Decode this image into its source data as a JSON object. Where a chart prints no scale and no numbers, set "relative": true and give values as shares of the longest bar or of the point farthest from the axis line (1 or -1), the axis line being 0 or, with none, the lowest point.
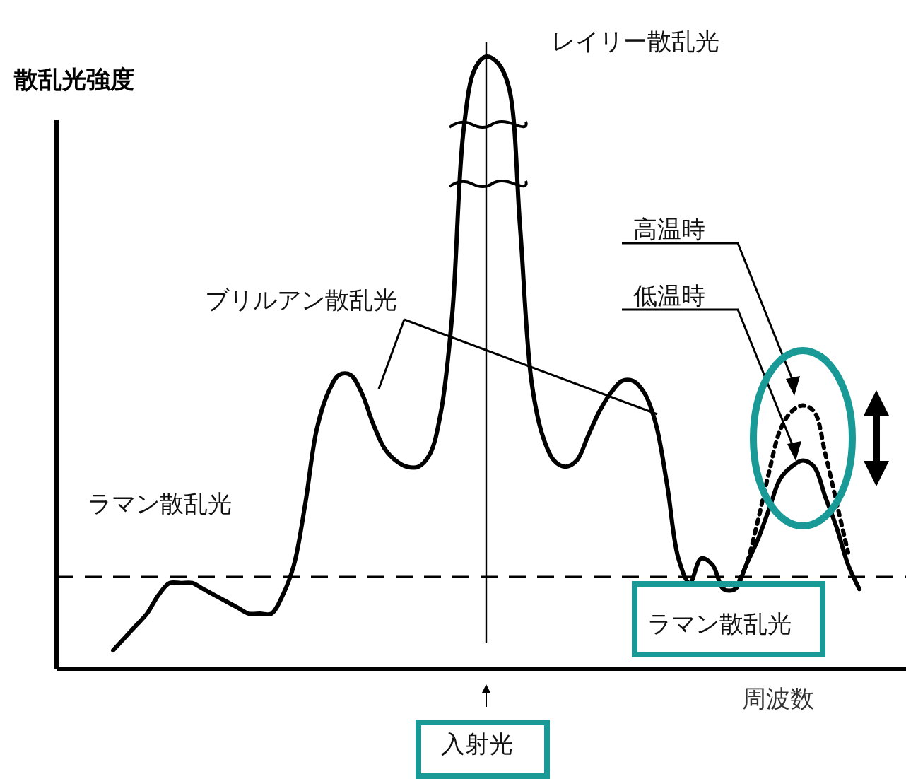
{
  "chart_data": {
    "type": "line",
    "relative": true,
    "ylabel": "散乱光強度",
    "xlabel": "周波数",
    "categories": [
      null,
      null,
      null,
      null,
      null,
      null,
      null,
      null,
      null,
      null,
      null,
      null,
      null,
      null,
      null,
      null,
      null,
      null,
      null,
      null,
      null,
      null,
      null,
      null,
      null,
      null,
      null,
      null,
      null,
      null,
      null,
      null,
      null,
      null,
      null,
      null,
      null,
      null,
      null,
      null,
      null,
      null,
      null,
      null,
      null,
      null,
      null,
      null,
      null,
      null,
      null,
      null,
      null,
      null,
      null,
      null,
      null,
      null,
      null,
      null,
      null,
      null,
      null,
      null,
      null,
      null,
      null
    ],
    "series": [
      {
        "color": "#000000",
        "line_style": "solid",
        "values": [
          0.03,
          0.05,
          0.07,
          0.09,
          0.12,
          0.14,
          0.14,
          0.14,
          0.13,
          0.12,
          0.11,
          0.1,
          0.09,
          0.09,
          0.09,
          0.12,
          0.17,
          0.27,
          0.39,
          0.45,
          0.48,
          0.48,
          0.45,
          0.4,
          0.36,
          0.34,
          0.33,
          0.33,
          0.35,
          0.42,
          0.58,
          0.88,
          0.98,
          1.0,
          0.99,
          0.95,
          0.72,
          0.47,
          0.38,
          0.34,
          0.33,
          0.34,
          0.38,
          0.42,
          0.45,
          0.47,
          0.47,
          0.45,
          0.4,
          0.3,
          0.18,
          0.14,
          0.18,
          0.17,
          0.13,
          0.13,
          0.17,
          0.21,
          0.26,
          0.31,
          0.33,
          0.34,
          0.33,
          0.28,
          0.23,
          0.17,
          0.13
        ]
      },
      {
        "color": "#000000",
        "line_style": "dotted",
        "values": [
          null,
          null,
          null,
          null,
          null,
          null,
          null,
          null,
          null,
          null,
          null,
          null,
          null,
          null,
          null,
          null,
          null,
          null,
          null,
          null,
          null,
          null,
          null,
          null,
          null,
          null,
          null,
          null,
          null,
          null,
          null,
          null,
          null,
          null,
          null,
          null,
          null,
          null,
          null,
          null,
          null,
          null,
          null,
          null,
          null,
          null,
          null,
          null,
          null,
          null,
          null,
          null,
          null,
          null,
          null,
          0.13,
          0.17,
          0.24,
          0.32,
          0.39,
          0.42,
          0.43,
          0.42,
          0.35,
          0.27,
          0.19,
          null
        ]
      }
    ],
    "ref_lines": [
      {
        "axis": "y",
        "value": 0.15,
        "line_style": "dashed",
        "color": "#000000"
      }
    ],
    "annotations": [
      "レイリー散乱光",
      "ブリルアン散乱光",
      "ラマン散乱光",
      "高温時",
      "低温時",
      "ラマン散乱光",
      "入射光"
    ],
    "marker": "none"
  }
}
